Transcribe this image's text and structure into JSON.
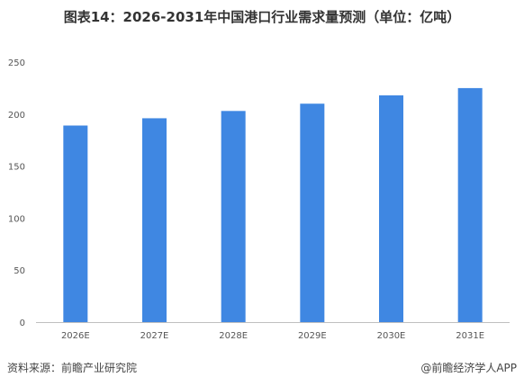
{
  "chart_data": {
    "type": "bar",
    "title": "图表14：2026-2031年中国港口行业需求量预测（单位：亿吨）",
    "categories": [
      "2026E",
      "2027E",
      "2028E",
      "2029E",
      "2030E",
      "2031E"
    ],
    "values": [
      189,
      196,
      203,
      210,
      218,
      225
    ],
    "ylim": [
      0,
      250
    ],
    "yticks": [
      0,
      50,
      100,
      150,
      200,
      250
    ],
    "xlabel": "",
    "ylabel": "",
    "grid": false,
    "colors": {
      "bar": "#3f87e2",
      "axis": "#bfbfbf"
    }
  },
  "footer": {
    "source": "资料来源：前瞻产业研究院",
    "credit": "@前瞻经济学人APP"
  }
}
